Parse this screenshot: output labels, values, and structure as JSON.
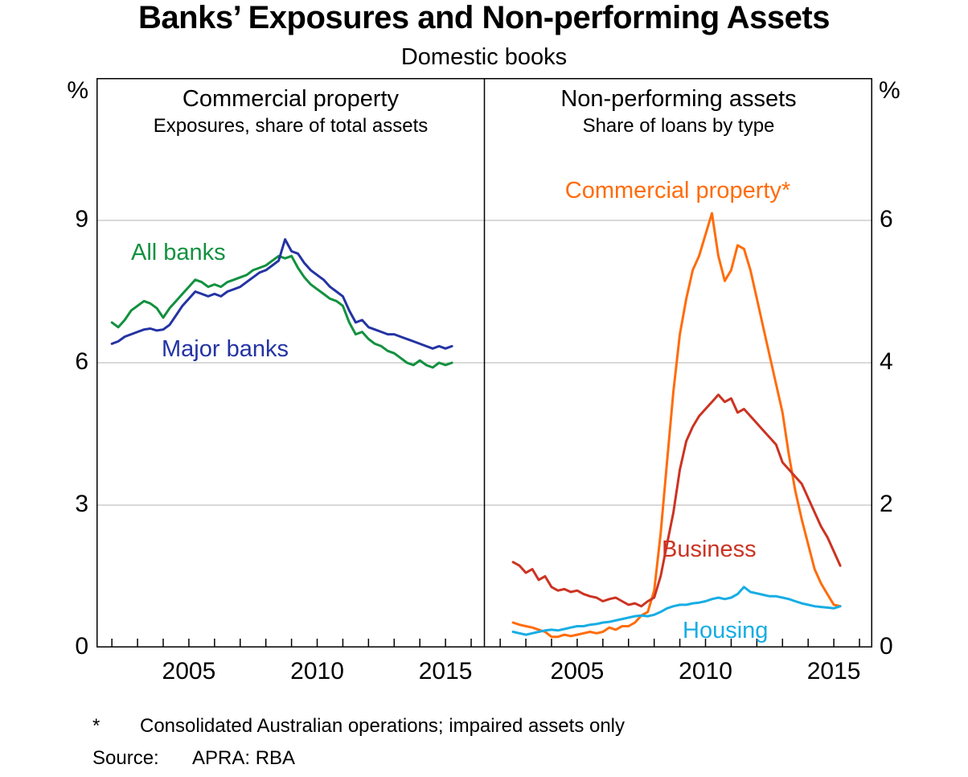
{
  "title": "Banks’ Exposures and Non-performing Assets",
  "subtitle": "Domestic books",
  "footnote_marker": "*",
  "footnote": "Consolidated Australian operations; impaired assets only",
  "source_label": "Source:",
  "source": "APRA: RBA",
  "chart_data": [
    {
      "type": "line",
      "panel": "left",
      "title": "Commercial property",
      "subtitle": "Exposures, share of total assets",
      "ylabel": "%",
      "ylim": [
        0,
        12
      ],
      "yticks": [
        0,
        3,
        6,
        9
      ],
      "xlim": [
        2001.4,
        2016.5
      ],
      "xticks": [
        2005,
        2010,
        2015
      ],
      "grid": true,
      "legend_position": "inline-labels",
      "series": [
        {
          "name": "All banks",
          "color": "#12913f",
          "x_start": 2002.0,
          "x_step": 0.25,
          "values": [
            6.85,
            6.75,
            6.9,
            7.1,
            7.2,
            7.3,
            7.25,
            7.15,
            6.95,
            7.15,
            7.3,
            7.45,
            7.6,
            7.75,
            7.7,
            7.6,
            7.65,
            7.6,
            7.7,
            7.75,
            7.8,
            7.85,
            7.95,
            8.0,
            8.05,
            8.15,
            8.25,
            8.2,
            8.25,
            8.0,
            7.8,
            7.65,
            7.55,
            7.45,
            7.35,
            7.3,
            7.2,
            6.85,
            6.6,
            6.65,
            6.5,
            6.4,
            6.35,
            6.25,
            6.2,
            6.1,
            6.0,
            5.95,
            6.05,
            5.95,
            5.9,
            6.0,
            5.95,
            6.0
          ]
        },
        {
          "name": "Major banks",
          "color": "#2433a3",
          "x_start": 2002.0,
          "x_step": 0.25,
          "values": [
            6.4,
            6.45,
            6.55,
            6.6,
            6.65,
            6.7,
            6.72,
            6.68,
            6.7,
            6.8,
            7.0,
            7.2,
            7.35,
            7.5,
            7.45,
            7.4,
            7.45,
            7.4,
            7.5,
            7.55,
            7.6,
            7.7,
            7.8,
            7.9,
            7.95,
            8.05,
            8.15,
            8.6,
            8.35,
            8.3,
            8.1,
            7.95,
            7.85,
            7.75,
            7.6,
            7.5,
            7.4,
            7.1,
            6.85,
            6.9,
            6.75,
            6.7,
            6.65,
            6.6,
            6.6,
            6.55,
            6.5,
            6.45,
            6.4,
            6.35,
            6.3,
            6.35,
            6.3,
            6.35
          ]
        }
      ]
    },
    {
      "type": "line",
      "panel": "right",
      "title": "Non-performing assets",
      "subtitle": "Share of loans by type",
      "ylabel": "%",
      "ylim": [
        0,
        8
      ],
      "yticks": [
        0,
        2,
        4,
        6
      ],
      "xlim": [
        2001.4,
        2016.5
      ],
      "xticks": [
        2005,
        2010,
        2015
      ],
      "grid": true,
      "legend_position": "inline-labels",
      "series": [
        {
          "name": "Commercial property*",
          "color": "#ff6c0a",
          "x_start": 2002.5,
          "x_step": 0.25,
          "values": [
            0.35,
            0.32,
            0.3,
            0.28,
            0.25,
            0.22,
            0.15,
            0.15,
            0.18,
            0.16,
            0.18,
            0.2,
            0.22,
            0.2,
            0.22,
            0.28,
            0.25,
            0.3,
            0.3,
            0.35,
            0.45,
            0.5,
            0.8,
            1.6,
            2.6,
            3.6,
            4.4,
            4.9,
            5.3,
            5.5,
            5.8,
            6.1,
            5.5,
            5.15,
            5.3,
            5.65,
            5.6,
            5.3,
            4.9,
            4.5,
            4.1,
            3.7,
            3.3,
            2.7,
            2.2,
            1.8,
            1.45,
            1.1,
            0.9,
            0.75,
            0.6,
            0.58
          ]
        },
        {
          "name": "Business",
          "color": "#cc3322",
          "x_start": 2002.5,
          "x_step": 0.25,
          "values": [
            1.2,
            1.15,
            1.05,
            1.1,
            0.95,
            1.0,
            0.85,
            0.8,
            0.82,
            0.78,
            0.8,
            0.75,
            0.72,
            0.7,
            0.65,
            0.68,
            0.7,
            0.65,
            0.6,
            0.62,
            0.58,
            0.65,
            0.7,
            1.0,
            1.45,
            1.9,
            2.5,
            2.9,
            3.1,
            3.25,
            3.35,
            3.45,
            3.55,
            3.45,
            3.5,
            3.3,
            3.35,
            3.25,
            3.15,
            3.05,
            2.95,
            2.85,
            2.6,
            2.5,
            2.4,
            2.3,
            2.1,
            1.9,
            1.7,
            1.55,
            1.35,
            1.15
          ]
        },
        {
          "name": "Housing",
          "color": "#17ade4",
          "x_start": 2002.5,
          "x_step": 0.25,
          "values": [
            0.22,
            0.2,
            0.18,
            0.2,
            0.22,
            0.24,
            0.25,
            0.24,
            0.26,
            0.28,
            0.3,
            0.3,
            0.32,
            0.33,
            0.35,
            0.36,
            0.38,
            0.4,
            0.42,
            0.44,
            0.45,
            0.44,
            0.46,
            0.5,
            0.55,
            0.58,
            0.6,
            0.6,
            0.62,
            0.63,
            0.65,
            0.68,
            0.7,
            0.68,
            0.7,
            0.75,
            0.85,
            0.78,
            0.76,
            0.74,
            0.72,
            0.72,
            0.7,
            0.68,
            0.65,
            0.62,
            0.6,
            0.58,
            0.57,
            0.56,
            0.55,
            0.58
          ]
        }
      ]
    }
  ]
}
